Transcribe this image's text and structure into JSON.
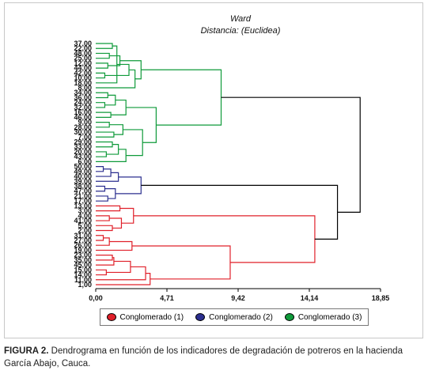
{
  "chart_data": {
    "type": "dendrogram",
    "title": "Ward",
    "subtitle": "Distancia: (Euclidea)",
    "xlim": [
      0,
      18.85
    ],
    "x_ticks": [
      "0,00",
      "4,71",
      "9,42",
      "14,14",
      "18,85"
    ],
    "leaves": [
      {
        "label": "37,00",
        "cluster": 3
      },
      {
        "label": "22,00",
        "cluster": 3
      },
      {
        "label": "48,00",
        "cluster": 3
      },
      {
        "label": "25,00",
        "cluster": 3
      },
      {
        "label": "12,00",
        "cluster": 3
      },
      {
        "label": "44,00",
        "cluster": 3
      },
      {
        "label": "42,00",
        "cluster": 3
      },
      {
        "label": "10,00",
        "cluster": 3
      },
      {
        "label": "18,00",
        "cluster": 3
      },
      {
        "label": "8,00",
        "cluster": 3
      },
      {
        "label": "34,00",
        "cluster": 3
      },
      {
        "label": "36,00",
        "cluster": 3
      },
      {
        "label": "24,00",
        "cluster": 3
      },
      {
        "label": "32,00",
        "cluster": 3
      },
      {
        "label": "16,00",
        "cluster": 3
      },
      {
        "label": "46,00",
        "cluster": 3
      },
      {
        "label": "9,00",
        "cluster": 3
      },
      {
        "label": "28,00",
        "cluster": 3
      },
      {
        "label": "30,00",
        "cluster": 3
      },
      {
        "label": "7,00",
        "cluster": 3
      },
      {
        "label": "29,00",
        "cluster": 3
      },
      {
        "label": "33,00",
        "cluster": 3
      },
      {
        "label": "20,00",
        "cluster": 3
      },
      {
        "label": "43,00",
        "cluster": 3
      },
      {
        "label": "6,00",
        "cluster": 3
      },
      {
        "label": "50,00",
        "cluster": 2
      },
      {
        "label": "49,00",
        "cluster": 2
      },
      {
        "label": "40,00",
        "cluster": 2
      },
      {
        "label": "39,00",
        "cluster": 2
      },
      {
        "label": "38,00",
        "cluster": 2
      },
      {
        "label": "47,00",
        "cluster": 2
      },
      {
        "label": "21,00",
        "cluster": 2
      },
      {
        "label": "17,00",
        "cluster": 2
      },
      {
        "label": "13,00",
        "cluster": 1
      },
      {
        "label": "3,00",
        "cluster": 1
      },
      {
        "label": "4,00",
        "cluster": 1
      },
      {
        "label": "41,00",
        "cluster": 1
      },
      {
        "label": "5,00",
        "cluster": 1
      },
      {
        "label": "2,00",
        "cluster": 1
      },
      {
        "label": "31,00",
        "cluster": 1
      },
      {
        "label": "27,00",
        "cluster": 1
      },
      {
        "label": "26,00",
        "cluster": 1
      },
      {
        "label": "19,00",
        "cluster": 1
      },
      {
        "label": "23,00",
        "cluster": 1
      },
      {
        "label": "35,00",
        "cluster": 1
      },
      {
        "label": "45,00",
        "cluster": 1
      },
      {
        "label": "15,00",
        "cluster": 1
      },
      {
        "label": "14,00",
        "cluster": 1
      },
      {
        "label": "11,00",
        "cluster": 1
      },
      {
        "label": "1,00",
        "cluster": 1
      }
    ],
    "merges": [
      {
        "a": 0,
        "b": 1,
        "h": 1.1
      },
      {
        "a": 2,
        "b": 3,
        "h": 0.9
      },
      {
        "a": 4,
        "b": 5,
        "h": 0.8
      },
      {
        "a": 6,
        "b": 7,
        "h": 0.6
      },
      {
        "a": 50,
        "b": 8,
        "h": 1.4
      },
      {
        "a": 51,
        "b": 52,
        "h": 1.6
      },
      {
        "a": 54,
        "b": 53,
        "h": 2.2
      },
      {
        "a": 9,
        "b": 56,
        "h": 2.6
      },
      {
        "a": 55,
        "b": 57,
        "h": 3.0
      },
      {
        "a": 10,
        "b": 11,
        "h": 0.8
      },
      {
        "a": 12,
        "b": 13,
        "h": 0.6
      },
      {
        "a": 14,
        "b": 15,
        "h": 1.0
      },
      {
        "a": 59,
        "b": 60,
        "h": 1.3
      },
      {
        "a": 62,
        "b": 61,
        "h": 2.0
      },
      {
        "a": 16,
        "b": 17,
        "h": 0.9
      },
      {
        "a": 18,
        "b": 19,
        "h": 1.2
      },
      {
        "a": 64,
        "b": 65,
        "h": 1.8
      },
      {
        "a": 20,
        "b": 21,
        "h": 1.1
      },
      {
        "a": 22,
        "b": 23,
        "h": 0.7
      },
      {
        "a": 67,
        "b": 68,
        "h": 1.5
      },
      {
        "a": 69,
        "b": 24,
        "h": 2.0
      },
      {
        "a": 66,
        "b": 70,
        "h": 3.1
      },
      {
        "a": 63,
        "b": 71,
        "h": 4.0
      },
      {
        "a": 58,
        "b": 72,
        "h": 8.3
      },
      {
        "a": 25,
        "b": 26,
        "h": 0.5
      },
      {
        "a": 74,
        "b": 27,
        "h": 1.0
      },
      {
        "a": 75,
        "b": 28,
        "h": 1.5
      },
      {
        "a": 29,
        "b": 30,
        "h": 0.6
      },
      {
        "a": 31,
        "b": 32,
        "h": 0.8
      },
      {
        "a": 77,
        "b": 78,
        "h": 1.3
      },
      {
        "a": 76,
        "b": 79,
        "h": 3.0
      },
      {
        "a": 33,
        "b": 34,
        "h": 1.6
      },
      {
        "a": 35,
        "b": 36,
        "h": 0.9
      },
      {
        "a": 37,
        "b": 38,
        "h": 1.1
      },
      {
        "a": 82,
        "b": 83,
        "h": 1.7
      },
      {
        "a": 81,
        "b": 84,
        "h": 2.5
      },
      {
        "a": 39,
        "b": 40,
        "h": 0.5
      },
      {
        "a": 86,
        "b": 41,
        "h": 0.9
      },
      {
        "a": 87,
        "b": 42,
        "h": 2.4
      },
      {
        "a": 43,
        "b": 44,
        "h": 1.1
      },
      {
        "a": 89,
        "b": 45,
        "h": 1.2
      },
      {
        "a": 46,
        "b": 47,
        "h": 0.7
      },
      {
        "a": 90,
        "b": 91,
        "h": 2.3
      },
      {
        "a": 92,
        "b": 48,
        "h": 3.3
      },
      {
        "a": 93,
        "b": 49,
        "h": 3.6
      },
      {
        "a": 88,
        "b": 94,
        "h": 8.9
      },
      {
        "a": 85,
        "b": 95,
        "h": 14.5
      },
      {
        "a": 80,
        "b": 96,
        "h": 16.0
      },
      {
        "a": 73,
        "b": 97,
        "h": 17.5
      }
    ],
    "legend": [
      {
        "label": "Conglomerado (1)",
        "color": "#e0202a"
      },
      {
        "label": "Conglomerado (2)",
        "color": "#2b2f8f"
      },
      {
        "label": "Conglomerado (3)",
        "color": "#0f9a3a"
      }
    ],
    "colors": {
      "cluster_1": "#e0202a",
      "cluster_2": "#2b2f8f",
      "cluster_3": "#0f9a3a",
      "root": "#000000"
    },
    "legend_placement": "bottom",
    "grid": false
  },
  "caption": {
    "label": "FIGURA 2.",
    "text": " Dendrograma en función de los indicadores de degradación de potreros en la hacienda García Abajo, Cauca."
  }
}
